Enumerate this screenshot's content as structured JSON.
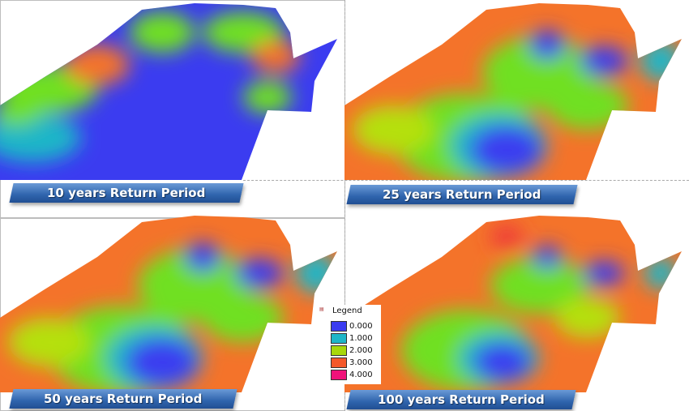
{
  "panels": [
    {
      "label": "10 years Return Period",
      "scheme": "low"
    },
    {
      "label": "25 years Return Period",
      "scheme": "mid"
    },
    {
      "label": "50 years Return Period",
      "scheme": "mid"
    },
    {
      "label": "100 years Return Period",
      "scheme": "high"
    }
  ],
  "legend": {
    "title": "Legend",
    "items": [
      {
        "value": "0.000",
        "color": "#3b3cf0"
      },
      {
        "value": "1.000",
        "color": "#1fb6c8"
      },
      {
        "value": "2.000",
        "color": "#a8d80c"
      },
      {
        "value": "3.000",
        "color": "#f4582a"
      },
      {
        "value": "4.000",
        "color": "#f0127a"
      }
    ]
  }
}
